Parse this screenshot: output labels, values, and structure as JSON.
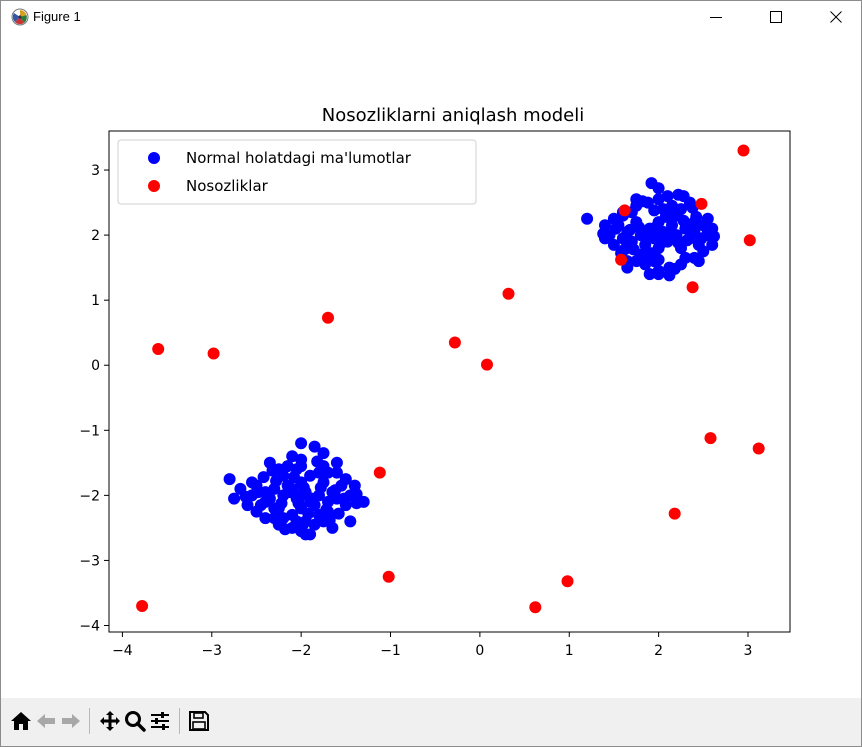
{
  "window": {
    "title": "Figure 1",
    "app_icon": "matplotlib-figure-icon",
    "controls": [
      "minimize-icon",
      "maximize-icon",
      "close-icon"
    ]
  },
  "toolbar": {
    "buttons": [
      "home-icon",
      "back-icon",
      "forward-icon",
      "pan-icon",
      "zoom-icon",
      "configure-subplots-icon",
      "save-icon"
    ]
  },
  "chart_data": {
    "type": "scatter",
    "title": "Nosozliklarni aniqlash modeli",
    "xlabel": "",
    "ylabel": "",
    "xlim": [
      -4.15,
      3.47
    ],
    "ylim": [
      -4.1,
      3.6
    ],
    "xticks": [
      -4,
      -3,
      -2,
      -1,
      0,
      1,
      2,
      3
    ],
    "yticks": [
      -4,
      -3,
      -2,
      -1,
      0,
      1,
      2,
      3
    ],
    "xtick_labels": [
      "−4",
      "−3",
      "−2",
      "−1",
      "0",
      "1",
      "2",
      "3"
    ],
    "ytick_labels": [
      "−4",
      "−3",
      "−2",
      "−1",
      "0",
      "1",
      "2",
      "3"
    ],
    "grid": false,
    "legend_position": "top-left",
    "series": [
      {
        "name": "Normal holatdagi ma'lumotlar",
        "color": "#0000ff",
        "points": [
          [
            -2.0,
            -2.0
          ],
          [
            -2.1,
            -1.9
          ],
          [
            -1.9,
            -2.1
          ],
          [
            -2.05,
            -2.05
          ],
          [
            -1.95,
            -1.95
          ],
          [
            -2.2,
            -2.0
          ],
          [
            -1.8,
            -2.0
          ],
          [
            -2.0,
            -1.8
          ],
          [
            -2.0,
            -2.2
          ],
          [
            -2.15,
            -1.85
          ],
          [
            -1.85,
            -2.15
          ],
          [
            -2.25,
            -2.2
          ],
          [
            -1.75,
            -1.8
          ],
          [
            -2.3,
            -1.9
          ],
          [
            -1.7,
            -2.1
          ],
          [
            -2.1,
            -2.3
          ],
          [
            -1.9,
            -1.7
          ],
          [
            -2.35,
            -2.05
          ],
          [
            -1.65,
            -1.95
          ],
          [
            -2.2,
            -1.7
          ],
          [
            -1.8,
            -2.3
          ],
          [
            -2.4,
            -1.95
          ],
          [
            -1.6,
            -2.05
          ],
          [
            -2.05,
            -1.6
          ],
          [
            -1.95,
            -2.4
          ],
          [
            -2.3,
            -2.35
          ],
          [
            -1.7,
            -1.65
          ],
          [
            -2.45,
            -2.15
          ],
          [
            -1.55,
            -1.85
          ],
          [
            -2.15,
            -1.55
          ],
          [
            -1.85,
            -2.45
          ],
          [
            -2.5,
            -1.85
          ],
          [
            -1.5,
            -2.15
          ],
          [
            -2.25,
            -1.6
          ],
          [
            -1.75,
            -2.4
          ],
          [
            -2.0,
            -2.55
          ],
          [
            -2.0,
            -1.45
          ],
          [
            -2.55,
            -2.0
          ],
          [
            -1.45,
            -2.0
          ],
          [
            -2.4,
            -2.35
          ],
          [
            -1.6,
            -1.65
          ],
          [
            -2.6,
            -2.15
          ],
          [
            -1.4,
            -1.85
          ],
          [
            -2.1,
            -1.4
          ],
          [
            -1.9,
            -2.6
          ],
          [
            -2.35,
            -1.5
          ],
          [
            -1.65,
            -2.5
          ],
          [
            -2.5,
            -2.25
          ],
          [
            -1.5,
            -1.75
          ],
          [
            -2.25,
            -2.45
          ],
          [
            -1.75,
            -1.55
          ],
          [
            -2.12,
            -1.95
          ],
          [
            -1.88,
            -2.05
          ],
          [
            -2.03,
            -2.12
          ],
          [
            -1.97,
            -1.88
          ],
          [
            -2.28,
            -1.78
          ],
          [
            -1.72,
            -2.22
          ],
          [
            -2.42,
            -1.72
          ],
          [
            -1.58,
            -2.28
          ],
          [
            -2.62,
            -2.02
          ],
          [
            -1.38,
            -1.98
          ],
          [
            -2.18,
            -2.52
          ],
          [
            -1.82,
            -1.48
          ],
          [
            -2.08,
            -1.72
          ],
          [
            -1.92,
            -2.28
          ],
          [
            -2.75,
            -2.05
          ],
          [
            -1.3,
            -2.1
          ],
          [
            -2.0,
            -1.2
          ],
          [
            -1.95,
            -2.6
          ],
          [
            -2.2,
            -2.35
          ],
          [
            -1.8,
            -1.65
          ],
          [
            -2.8,
            -1.75
          ],
          [
            -1.45,
            -2.4
          ],
          [
            -1.75,
            -1.35
          ],
          [
            -1.85,
            -1.25
          ],
          [
            -2.55,
            -1.8
          ],
          [
            -2.4,
            -2.1
          ],
          [
            -2.3,
            -2.2
          ],
          [
            -1.7,
            -2.25
          ],
          [
            -2.05,
            -2.4
          ],
          [
            -2.48,
            -1.95
          ],
          [
            -1.52,
            -2.05
          ],
          [
            -2.1,
            -2.5
          ],
          [
            -1.62,
            -1.92
          ],
          [
            -2.38,
            -2.08
          ],
          [
            -2.0,
            -2.0
          ],
          [
            -1.78,
            -1.88
          ],
          [
            -2.22,
            -2.12
          ],
          [
            -2.32,
            -1.62
          ],
          [
            -1.68,
            -2.38
          ],
          [
            -1.38,
            -2.12
          ],
          [
            -2.68,
            -1.9
          ],
          [
            -2.0,
            -1.55
          ],
          [
            -1.98,
            -2.45
          ],
          [
            -1.6,
            -1.5
          ],
          [
            2.0,
            2.0
          ],
          [
            2.1,
            1.9
          ],
          [
            1.9,
            2.1
          ],
          [
            2.05,
            2.05
          ],
          [
            1.95,
            1.95
          ],
          [
            2.2,
            2.0
          ],
          [
            1.8,
            2.0
          ],
          [
            2.0,
            2.2
          ],
          [
            2.0,
            1.8
          ],
          [
            2.15,
            2.15
          ],
          [
            1.85,
            1.85
          ],
          [
            2.25,
            1.8
          ],
          [
            1.75,
            2.2
          ],
          [
            2.3,
            2.1
          ],
          [
            1.7,
            1.9
          ],
          [
            2.1,
            2.3
          ],
          [
            1.9,
            1.7
          ],
          [
            2.35,
            1.95
          ],
          [
            1.65,
            2.05
          ],
          [
            2.2,
            2.3
          ],
          [
            1.8,
            1.7
          ],
          [
            2.4,
            2.05
          ],
          [
            1.6,
            1.95
          ],
          [
            2.05,
            2.4
          ],
          [
            1.95,
            1.6
          ],
          [
            2.3,
            1.65
          ],
          [
            1.7,
            2.35
          ],
          [
            2.45,
            1.85
          ],
          [
            1.55,
            2.15
          ],
          [
            2.15,
            2.45
          ],
          [
            1.85,
            1.55
          ],
          [
            2.5,
            2.15
          ],
          [
            1.5,
            1.85
          ],
          [
            2.25,
            2.4
          ],
          [
            1.75,
            1.6
          ],
          [
            2.0,
            2.55
          ],
          [
            2.0,
            1.45
          ],
          [
            2.55,
            2.0
          ],
          [
            1.45,
            2.0
          ],
          [
            2.4,
            1.65
          ],
          [
            1.6,
            2.35
          ],
          [
            2.6,
            1.85
          ],
          [
            1.4,
            2.15
          ],
          [
            2.1,
            2.6
          ],
          [
            1.9,
            1.4
          ],
          [
            2.35,
            2.5
          ],
          [
            1.65,
            1.5
          ],
          [
            2.5,
            1.75
          ],
          [
            1.5,
            2.25
          ],
          [
            2.25,
            1.55
          ],
          [
            1.75,
            2.45
          ],
          [
            2.12,
            2.05
          ],
          [
            1.88,
            1.95
          ],
          [
            2.03,
            1.88
          ],
          [
            1.97,
            2.12
          ],
          [
            2.28,
            2.22
          ],
          [
            1.72,
            1.78
          ],
          [
            2.42,
            2.28
          ],
          [
            1.58,
            1.72
          ],
          [
            2.62,
            1.98
          ],
          [
            1.38,
            2.02
          ],
          [
            2.18,
            1.48
          ],
          [
            1.82,
            2.52
          ],
          [
            2.08,
            2.28
          ],
          [
            1.92,
            1.72
          ],
          [
            2.6,
            2.1
          ],
          [
            1.2,
            2.25
          ],
          [
            1.92,
            2.8
          ],
          [
            2.45,
            1.6
          ],
          [
            2.55,
            2.25
          ],
          [
            2.0,
            2.72
          ],
          [
            1.75,
            2.55
          ],
          [
            2.28,
            2.6
          ],
          [
            2.22,
            2.62
          ],
          [
            1.65,
            1.6
          ],
          [
            1.6,
            2.3
          ],
          [
            2.4,
            2.2
          ],
          [
            1.52,
            2.1
          ],
          [
            2.48,
            1.95
          ],
          [
            2.0,
            1.62
          ],
          [
            1.95,
            2.38
          ],
          [
            1.68,
            2.08
          ],
          [
            2.32,
            1.92
          ],
          [
            2.12,
            1.5
          ],
          [
            1.88,
            2.5
          ],
          [
            2.0,
            2.0
          ],
          [
            1.78,
            2.12
          ],
          [
            2.22,
            1.88
          ],
          [
            1.62,
            1.78
          ],
          [
            2.38,
            2.42
          ],
          [
            2.12,
            1.38
          ],
          [
            1.88,
            1.72
          ],
          [
            2.0,
            1.4
          ],
          [
            1.4,
            1.95
          ],
          [
            2.55,
            2.05
          ]
        ]
      },
      {
        "name": "Nosozliklar",
        "color": "#ff0000",
        "points": [
          [
            -3.6,
            0.25
          ],
          [
            -2.98,
            0.18
          ],
          [
            -1.7,
            0.73
          ],
          [
            -0.28,
            0.35
          ],
          [
            0.08,
            0.01
          ],
          [
            0.32,
            1.1
          ],
          [
            -1.12,
            -1.65
          ],
          [
            -1.02,
            -3.25
          ],
          [
            -3.78,
            -3.7
          ],
          [
            0.62,
            -3.72
          ],
          [
            0.98,
            -3.32
          ],
          [
            2.18,
            -2.28
          ],
          [
            2.58,
            -1.12
          ],
          [
            3.12,
            -1.28
          ],
          [
            2.38,
            1.2
          ],
          [
            3.02,
            1.92
          ],
          [
            2.95,
            3.3
          ],
          [
            2.48,
            2.48
          ],
          [
            1.62,
            2.38
          ],
          [
            1.58,
            1.62
          ]
        ]
      }
    ]
  }
}
